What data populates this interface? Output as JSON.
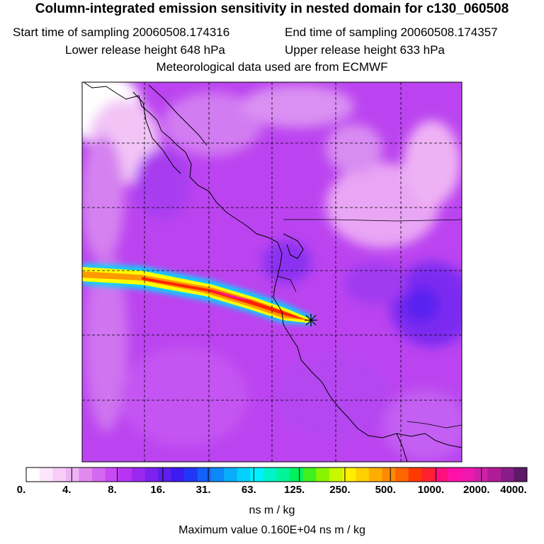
{
  "header": {
    "title": "Column-integrated emission sensitivity in nested domain for c130_060508",
    "start_time": "Start time of sampling 20060508.174316",
    "end_time": "End time of sampling 20060508.174357",
    "lower_release": "Lower release height  648 hPa",
    "upper_release": "Upper release height  633 hPa",
    "met_data": "Meteorological data used are from ECMWF"
  },
  "colorbar": {
    "tick_labels": [
      "0.",
      "4.",
      "8.",
      "16.",
      "31.",
      "63.",
      "125.",
      "250.",
      "500.",
      "1000.",
      "2000.",
      "4000."
    ],
    "colors": [
      "#ffffff",
      "#fde6fd",
      "#f7cdf7",
      "#eeb3f2",
      "#e08aee",
      "#d468f0",
      "#c84af4",
      "#b834f2",
      "#9c28f0",
      "#7d22ee",
      "#5d1eee",
      "#3c1cf0",
      "#2038f6",
      "#1460f8",
      "#0c88fa",
      "#08acfa",
      "#04d0fc",
      "#00f0ff",
      "#00f2c8",
      "#00f498",
      "#00f060",
      "#40f020",
      "#88f400",
      "#c8f800",
      "#fff000",
      "#ffd000",
      "#ffae00",
      "#ff8a00",
      "#ff6600",
      "#ff3a00",
      "#ff2030",
      "#ff1080",
      "#ff10a8",
      "#ee18b0",
      "#d020a8",
      "#b01c98",
      "#8a1c88",
      "#5e1a68"
    ],
    "units": "ns m / kg"
  },
  "footer": {
    "max_value": "Maximum value  0.160E+04 ns m / kg"
  },
  "map": {
    "background_color": "#bb44f0",
    "release_marker": "release-point-star-icon",
    "plume_colors": [
      "#ffff00",
      "#ff9900",
      "#ff2200",
      "#ff1199"
    ]
  }
}
